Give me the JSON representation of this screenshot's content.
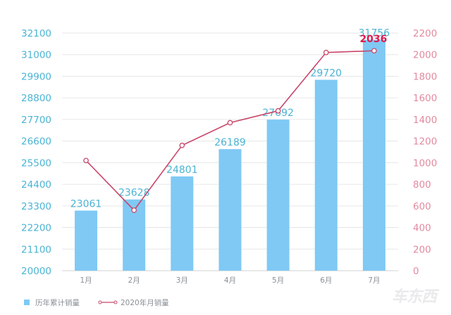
{
  "chart_data": {
    "type": "bar+line",
    "title": "",
    "categories": [
      "1月",
      "2月",
      "3月",
      "4月",
      "5月",
      "6月",
      "7月"
    ],
    "series": [
      {
        "name": "历年累计销量",
        "type": "bar",
        "axis": "left",
        "color": "#7fc9f4",
        "values": [
          23061,
          23628,
          24801,
          26189,
          27692,
          29720,
          31756
        ]
      },
      {
        "name": "2020年月销量",
        "type": "line",
        "axis": "right",
        "color": "#c9476a",
        "values": [
          1020,
          560,
          1160,
          1370,
          1480,
          2020,
          2036
        ],
        "annotated_value": {
          "index": 6,
          "label": "2036"
        }
      }
    ],
    "left_axis": {
      "ylim": [
        20000,
        32100
      ],
      "ticks": [
        20000,
        21100,
        22200,
        23300,
        24400,
        25500,
        26600,
        27700,
        28800,
        29900,
        31000,
        32100
      ],
      "color": "#4ab4d4"
    },
    "right_axis": {
      "ylim": [
        0,
        2200
      ],
      "ticks": [
        0,
        200,
        400,
        600,
        800,
        1000,
        1200,
        1400,
        1600,
        1800,
        2000,
        2200
      ],
      "color": "#e28a9e"
    },
    "grid": true,
    "legend_position": "bottom-left",
    "xlabel": "",
    "ylabel": ""
  },
  "legend": {
    "bar_label": "历年累计销量",
    "line_label": "2020年月销量"
  },
  "watermark": "车东西"
}
